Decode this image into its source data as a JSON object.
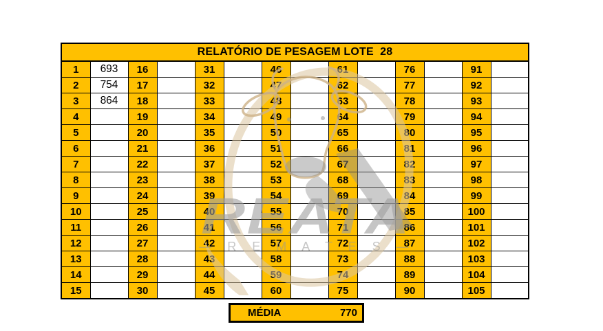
{
  "title": "RELATÓRIO DE PESAGEM LOTE  28",
  "grid": {
    "columns": [
      {
        "numbers": [
          1,
          2,
          3,
          4,
          5,
          6,
          7,
          8,
          9,
          10,
          11,
          12,
          13,
          14,
          15
        ],
        "values": [
          "693",
          "754",
          "864",
          "",
          "",
          "",
          "",
          "",
          "",
          "",
          "",
          "",
          "",
          "",
          ""
        ]
      },
      {
        "numbers": [
          16,
          17,
          18,
          19,
          20,
          21,
          22,
          23,
          24,
          25,
          26,
          27,
          28,
          29,
          30
        ],
        "values": [
          "",
          "",
          "",
          "",
          "",
          "",
          "",
          "",
          "",
          "",
          "",
          "",
          "",
          "",
          ""
        ]
      },
      {
        "numbers": [
          31,
          32,
          33,
          34,
          35,
          36,
          37,
          38,
          39,
          40,
          41,
          42,
          43,
          44,
          45
        ],
        "values": [
          "",
          "",
          "",
          "",
          "",
          "",
          "",
          "",
          "",
          "",
          "",
          "",
          "",
          "",
          ""
        ]
      },
      {
        "numbers": [
          46,
          47,
          48,
          49,
          50,
          51,
          52,
          53,
          54,
          55,
          56,
          57,
          58,
          59,
          60
        ],
        "values": [
          "",
          "",
          "",
          "",
          "",
          "",
          "",
          "",
          "",
          "",
          "",
          "",
          "",
          "",
          ""
        ]
      },
      {
        "numbers": [
          61,
          62,
          63,
          64,
          65,
          66,
          67,
          68,
          69,
          70,
          71,
          72,
          73,
          74,
          75
        ],
        "values": [
          "",
          "",
          "",
          "",
          "",
          "",
          "",
          "",
          "",
          "",
          "",
          "",
          "",
          "",
          ""
        ]
      },
      {
        "numbers": [
          76,
          77,
          78,
          79,
          80,
          81,
          82,
          83,
          84,
          85,
          86,
          87,
          88,
          89,
          90
        ],
        "values": [
          "",
          "",
          "",
          "",
          "",
          "",
          "",
          "",
          "",
          "",
          "",
          "",
          "",
          "",
          ""
        ]
      },
      {
        "numbers": [
          91,
          92,
          93,
          94,
          95,
          96,
          97,
          98,
          99,
          100,
          101,
          102,
          103,
          104,
          105
        ],
        "values": [
          "",
          "",
          "",
          "",
          "",
          "",
          "",
          "",
          "",
          "",
          "",
          "",
          "",
          "",
          ""
        ]
      }
    ]
  },
  "summary": {
    "label": "MÉDIA",
    "value": "770"
  },
  "watermark": {
    "brand": "REATA",
    "tagline": "— R E M A T E S —"
  },
  "colors": {
    "cell_amber": "#FFC000",
    "grid_border": "#000000",
    "watermark_tan": "#DBC49E",
    "watermark_gray": "#9E9E9E"
  }
}
